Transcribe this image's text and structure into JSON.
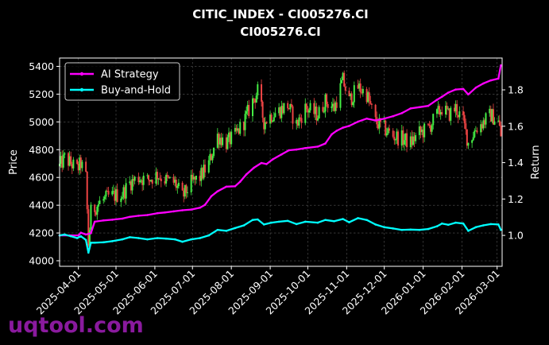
{
  "chart_data": {
    "type": "line",
    "title": "CITIC_INDEX - CI005276.CI",
    "subtitle": "CI005276.CI",
    "xlabel": "",
    "ylabel": "Price",
    "ylabel_right": "Return",
    "x_ticks": [
      "2025-04-01",
      "2025-05-01",
      "2025-06-01",
      "2025-07-01",
      "2025-08-01",
      "2025-09-01",
      "2025-10-01",
      "2025-11-01",
      "2025-12-01",
      "2026-01-01",
      "2026-02-01",
      "2026-03-01"
    ],
    "y_ticks": [
      4000,
      4200,
      4400,
      4600,
      4800,
      5000,
      5200,
      5400
    ],
    "y_right_ticks": [
      1.0,
      1.2,
      1.4,
      1.6,
      1.8
    ],
    "xlim": [
      "2025-03-17",
      "2026-03-05"
    ],
    "ylim": [
      3960,
      5460
    ],
    "ylim_right": [
      0.83,
      1.975
    ],
    "grid": true,
    "legend_position": "top-left",
    "colors": {
      "up": "#44ee44",
      "down": "#ee4444",
      "ai_strategy": "#ff00ff",
      "buy_hold": "#00ffff",
      "background": "#000000",
      "grid": "#555555"
    },
    "series": [
      {
        "name": "AI Strategy",
        "axis": "right",
        "points": [
          [
            "2025-03-17",
            1.0
          ],
          [
            "2025-03-25",
            1.0
          ],
          [
            "2025-04-01",
            1.0
          ],
          [
            "2025-04-03",
            1.015
          ],
          [
            "2025-04-07",
            1.005
          ],
          [
            "2025-04-11",
            1.012
          ],
          [
            "2025-04-14",
            1.075
          ],
          [
            "2025-04-21",
            1.082
          ],
          [
            "2025-04-28",
            1.086
          ],
          [
            "2025-05-06",
            1.092
          ],
          [
            "2025-05-12",
            1.102
          ],
          [
            "2025-05-19",
            1.108
          ],
          [
            "2025-05-26",
            1.112
          ],
          [
            "2025-06-03",
            1.122
          ],
          [
            "2025-06-09",
            1.126
          ],
          [
            "2025-06-16",
            1.132
          ],
          [
            "2025-06-23",
            1.138
          ],
          [
            "2025-06-30",
            1.142
          ],
          [
            "2025-07-07",
            1.152
          ],
          [
            "2025-07-11",
            1.168
          ],
          [
            "2025-07-16",
            1.215
          ],
          [
            "2025-07-21",
            1.242
          ],
          [
            "2025-07-28",
            1.268
          ],
          [
            "2025-08-04",
            1.27
          ],
          [
            "2025-08-08",
            1.295
          ],
          [
            "2025-08-13",
            1.335
          ],
          [
            "2025-08-19",
            1.372
          ],
          [
            "2025-08-25",
            1.398
          ],
          [
            "2025-08-29",
            1.392
          ],
          [
            "2025-09-03",
            1.418
          ],
          [
            "2025-09-10",
            1.445
          ],
          [
            "2025-09-16",
            1.468
          ],
          [
            "2025-09-22",
            1.472
          ],
          [
            "2025-09-29",
            1.48
          ],
          [
            "2025-10-09",
            1.488
          ],
          [
            "2025-10-15",
            1.505
          ],
          [
            "2025-10-20",
            1.555
          ],
          [
            "2025-10-24",
            1.575
          ],
          [
            "2025-10-29",
            1.592
          ],
          [
            "2025-11-03",
            1.602
          ],
          [
            "2025-11-10",
            1.625
          ],
          [
            "2025-11-17",
            1.642
          ],
          [
            "2025-11-24",
            1.632
          ],
          [
            "2025-12-01",
            1.642
          ],
          [
            "2025-12-08",
            1.655
          ],
          [
            "2025-12-15",
            1.672
          ],
          [
            "2025-12-22",
            1.698
          ],
          [
            "2025-12-29",
            1.705
          ],
          [
            "2026-01-05",
            1.712
          ],
          [
            "2026-01-12",
            1.745
          ],
          [
            "2026-01-16",
            1.762
          ],
          [
            "2026-01-21",
            1.785
          ],
          [
            "2026-01-27",
            1.802
          ],
          [
            "2026-02-02",
            1.805
          ],
          [
            "2026-02-06",
            1.775
          ],
          [
            "2026-02-12",
            1.812
          ],
          [
            "2026-02-18",
            1.835
          ],
          [
            "2026-02-24",
            1.852
          ],
          [
            "2026-03-02",
            1.862
          ],
          [
            "2026-03-04",
            1.935
          ]
        ]
      },
      {
        "name": "Buy-and-Hold",
        "axis": "right",
        "points": [
          [
            "2025-03-17",
            1.0
          ],
          [
            "2025-03-21",
            1.005
          ],
          [
            "2025-03-26",
            0.995
          ],
          [
            "2025-03-31",
            0.985
          ],
          [
            "2025-04-03",
            0.995
          ],
          [
            "2025-04-07",
            0.975
          ],
          [
            "2025-04-09",
            0.905
          ],
          [
            "2025-04-11",
            0.96
          ],
          [
            "2025-04-14",
            0.96
          ],
          [
            "2025-04-21",
            0.962
          ],
          [
            "2025-04-28",
            0.968
          ],
          [
            "2025-05-06",
            0.978
          ],
          [
            "2025-05-12",
            0.99
          ],
          [
            "2025-05-19",
            0.985
          ],
          [
            "2025-05-26",
            0.978
          ],
          [
            "2025-06-03",
            0.985
          ],
          [
            "2025-06-10",
            0.982
          ],
          [
            "2025-06-17",
            0.978
          ],
          [
            "2025-06-23",
            0.965
          ],
          [
            "2025-06-30",
            0.978
          ],
          [
            "2025-07-07",
            0.985
          ],
          [
            "2025-07-14",
            1.0
          ],
          [
            "2025-07-21",
            1.03
          ],
          [
            "2025-07-28",
            1.025
          ],
          [
            "2025-08-04",
            1.04
          ],
          [
            "2025-08-11",
            1.055
          ],
          [
            "2025-08-18",
            1.085
          ],
          [
            "2025-08-22",
            1.088
          ],
          [
            "2025-08-27",
            1.06
          ],
          [
            "2025-09-02",
            1.07
          ],
          [
            "2025-09-08",
            1.075
          ],
          [
            "2025-09-15",
            1.08
          ],
          [
            "2025-09-22",
            1.062
          ],
          [
            "2025-09-29",
            1.075
          ],
          [
            "2025-10-09",
            1.07
          ],
          [
            "2025-10-15",
            1.085
          ],
          [
            "2025-10-22",
            1.078
          ],
          [
            "2025-10-29",
            1.09
          ],
          [
            "2025-11-03",
            1.072
          ],
          [
            "2025-11-10",
            1.095
          ],
          [
            "2025-11-17",
            1.085
          ],
          [
            "2025-11-24",
            1.06
          ],
          [
            "2025-12-01",
            1.045
          ],
          [
            "2025-12-08",
            1.038
          ],
          [
            "2025-12-15",
            1.03
          ],
          [
            "2025-12-22",
            1.032
          ],
          [
            "2025-12-29",
            1.03
          ],
          [
            "2026-01-05",
            1.035
          ],
          [
            "2026-01-12",
            1.05
          ],
          [
            "2026-01-16",
            1.065
          ],
          [
            "2026-01-21",
            1.058
          ],
          [
            "2026-01-27",
            1.07
          ],
          [
            "2026-02-02",
            1.065
          ],
          [
            "2026-02-06",
            1.025
          ],
          [
            "2026-02-12",
            1.045
          ],
          [
            "2026-02-18",
            1.055
          ],
          [
            "2026-02-24",
            1.062
          ],
          [
            "2026-03-02",
            1.06
          ],
          [
            "2026-03-04",
            1.03
          ]
        ]
      }
    ],
    "price_path": [
      [
        "2025-03-17",
        4680
      ],
      [
        "2025-03-21",
        4740
      ],
      [
        "2025-03-26",
        4700
      ],
      [
        "2025-03-31",
        4660
      ],
      [
        "2025-04-03",
        4700
      ],
      [
        "2025-04-07",
        4600
      ],
      [
        "2025-04-09",
        4120
      ],
      [
        "2025-04-11",
        4350
      ],
      [
        "2025-04-18",
        4420
      ],
      [
        "2025-04-25",
        4460
      ],
      [
        "2025-05-06",
        4480
      ],
      [
        "2025-05-12",
        4560
      ],
      [
        "2025-05-19",
        4600
      ],
      [
        "2025-05-26",
        4580
      ],
      [
        "2025-06-03",
        4620
      ],
      [
        "2025-06-10",
        4580
      ],
      [
        "2025-06-17",
        4560
      ],
      [
        "2025-06-23",
        4460
      ],
      [
        "2025-06-30",
        4560
      ],
      [
        "2025-07-07",
        4600
      ],
      [
        "2025-07-14",
        4700
      ],
      [
        "2025-07-21",
        4900
      ],
      [
        "2025-07-28",
        4850
      ],
      [
        "2025-08-04",
        4900
      ],
      [
        "2025-08-11",
        5000
      ],
      [
        "2025-08-18",
        5150
      ],
      [
        "2025-08-22",
        5220
      ],
      [
        "2025-08-27",
        5000
      ],
      [
        "2025-09-02",
        5050
      ],
      [
        "2025-09-08",
        5080
      ],
      [
        "2025-09-15",
        5120
      ],
      [
        "2025-09-22",
        4980
      ],
      [
        "2025-09-29",
        5100
      ],
      [
        "2025-10-09",
        5050
      ],
      [
        "2025-10-15",
        5150
      ],
      [
        "2025-10-22",
        5100
      ],
      [
        "2025-10-29",
        5300
      ],
      [
        "2025-11-03",
        5150
      ],
      [
        "2025-11-10",
        5250
      ],
      [
        "2025-11-17",
        5200
      ],
      [
        "2025-11-24",
        5000
      ],
      [
        "2025-12-01",
        4950
      ],
      [
        "2025-12-08",
        4900
      ],
      [
        "2025-12-15",
        4880
      ],
      [
        "2025-12-22",
        4850
      ],
      [
        "2025-12-29",
        4920
      ],
      [
        "2026-01-05",
        4950
      ],
      [
        "2026-01-12",
        5050
      ],
      [
        "2026-01-16",
        5100
      ],
      [
        "2026-01-21",
        5050
      ],
      [
        "2026-01-27",
        5100
      ],
      [
        "2026-02-02",
        5000
      ],
      [
        "2026-02-06",
        4850
      ],
      [
        "2026-02-12",
        4950
      ],
      [
        "2026-02-18",
        5000
      ],
      [
        "2026-02-24",
        5050
      ],
      [
        "2026-03-02",
        5000
      ],
      [
        "2026-03-04",
        4900
      ]
    ]
  },
  "watermark": "uqtool.com"
}
